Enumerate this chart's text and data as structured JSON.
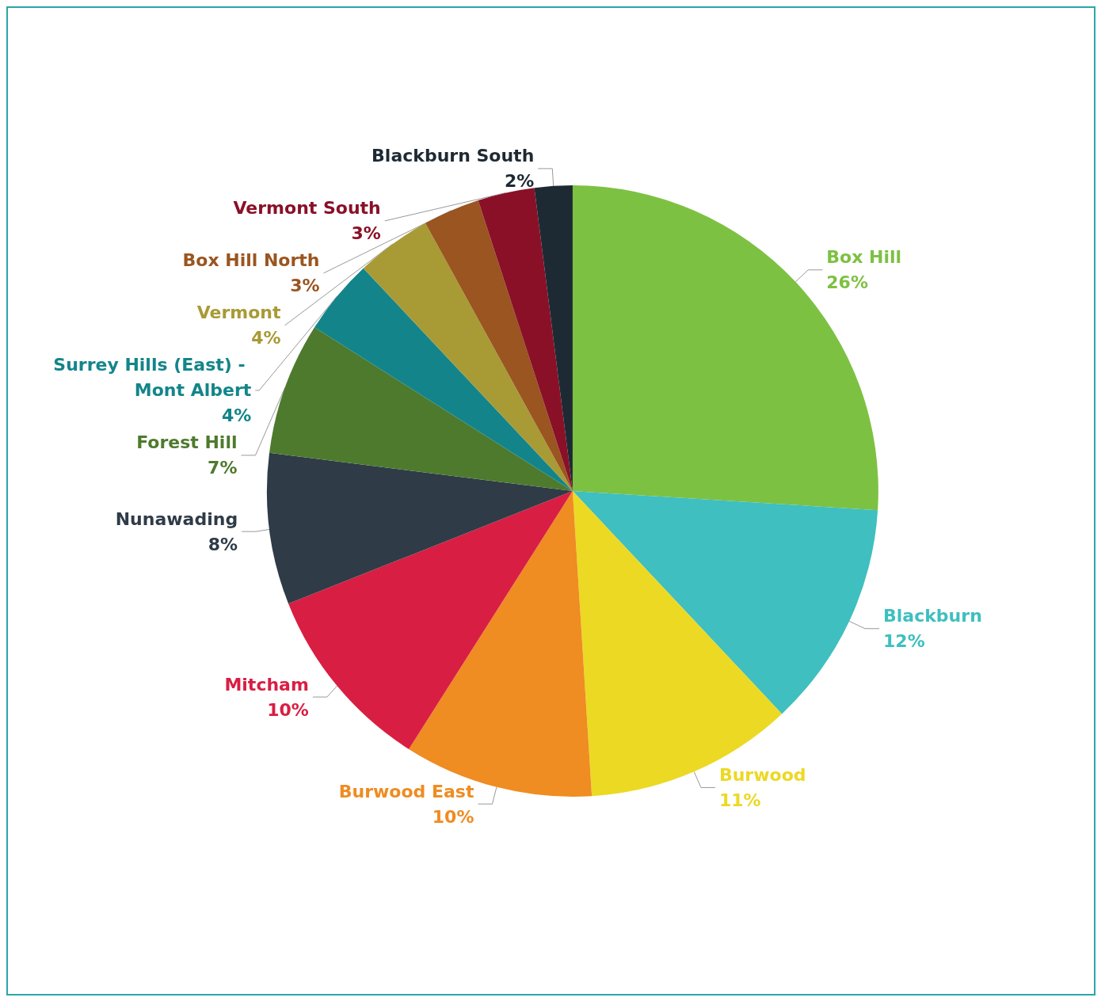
{
  "chart_data": {
    "type": "pie",
    "categories": [
      "Box Hill",
      "Blackburn",
      "Burwood",
      "Burwood East",
      "Mitcham",
      "Nunawading",
      "Forest Hill",
      "Surrey Hills (East) - Mont Albert",
      "Vermont",
      "Box Hill North",
      "Vermont South",
      "Blackburn South"
    ],
    "values": [
      26,
      12,
      11,
      10,
      10,
      8,
      7,
      4,
      4,
      3,
      3,
      2
    ],
    "value_labels": [
      "26%",
      "12%",
      "11%",
      "10%",
      "10%",
      "8%",
      "7%",
      "4%",
      "4%",
      "3%",
      "3%",
      "2%"
    ],
    "colors": [
      "#7dc142",
      "#3fbfbf",
      "#ecd923",
      "#ef8c22",
      "#d91e43",
      "#2f3b47",
      "#4e7a2e",
      "#13858a",
      "#a89a35",
      "#9a5520",
      "#8a1028",
      "#1e2a33"
    ],
    "legend": false
  }
}
